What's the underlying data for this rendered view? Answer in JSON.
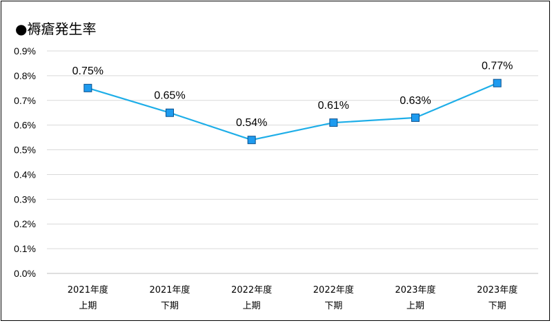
{
  "chart_data": {
    "type": "line",
    "title": "●褥瘡発生率",
    "categories": [
      [
        "2021年度",
        "上期"
      ],
      [
        "2021年度",
        "下期"
      ],
      [
        "2022年度",
        "上期"
      ],
      [
        "2022年度",
        "下期"
      ],
      [
        "2023年度",
        "上期"
      ],
      [
        "2023年度",
        "下期"
      ]
    ],
    "values": [
      0.75,
      0.65,
      0.54,
      0.61,
      0.63,
      0.77
    ],
    "data_labels": [
      "0.75%",
      "0.65%",
      "0.54%",
      "0.61%",
      "0.63%",
      "0.77%"
    ],
    "y_ticks": [
      "0.0%",
      "0.1%",
      "0.2%",
      "0.3%",
      "0.4%",
      "0.5%",
      "0.6%",
      "0.7%",
      "0.8%",
      "0.9%"
    ],
    "ylim": [
      0,
      0.9
    ],
    "ystep": 0.1,
    "grid": true,
    "legend": "none",
    "colors": {
      "line": "#1EAEE8",
      "marker_fill": "#1E9BEF",
      "marker_edge": "#0A4F8C",
      "grid": "#D9D9D9"
    }
  }
}
